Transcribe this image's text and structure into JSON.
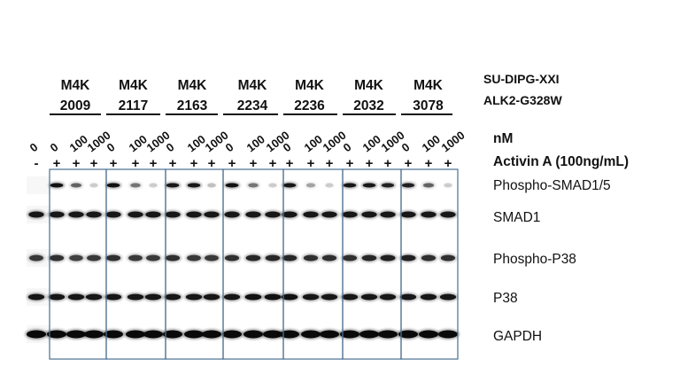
{
  "cell_line": {
    "name": "SU-DIPG-XXI",
    "mutation": "ALK2-G328W"
  },
  "compounds": [
    {
      "line1": "M4K",
      "line2": "2009"
    },
    {
      "line1": "M4K",
      "line2": "2117"
    },
    {
      "line1": "M4K",
      "line2": "2163"
    },
    {
      "line1": "M4K",
      "line2": "2234"
    },
    {
      "line1": "M4K",
      "line2": "2236"
    },
    {
      "line1": "M4K",
      "line2": "2032"
    },
    {
      "line1": "M4K",
      "line2": "3078"
    }
  ],
  "control": {
    "dose": "0",
    "activin": "-"
  },
  "doses": [
    "0",
    "100",
    "1000"
  ],
  "activin_sign": "+",
  "dose_unit": "nM",
  "activin_label": "Activin A (100ng/mL)",
  "blots": [
    {
      "label": "Phospho-SMAD1/5",
      "intensities": [
        0.0,
        0.95,
        0.5,
        0.05,
        0.95,
        0.4,
        0.05,
        0.9,
        0.9,
        0.1,
        0.95,
        0.4,
        0.05,
        0.9,
        0.2,
        0.05,
        0.9,
        0.9,
        0.85,
        0.85,
        0.5,
        0.05
      ]
    },
    {
      "label": "SMAD1",
      "intensities": [
        0.9,
        0.9,
        0.9,
        0.9,
        0.9,
        0.9,
        0.9,
        0.9,
        0.9,
        0.9,
        0.9,
        0.9,
        0.9,
        0.9,
        0.9,
        0.9,
        0.9,
        0.9,
        0.9,
        0.9,
        0.9,
        0.9
      ]
    },
    {
      "label": "Phospho-P38",
      "intensities": [
        0.7,
        0.75,
        0.65,
        0.7,
        0.75,
        0.7,
        0.7,
        0.75,
        0.7,
        0.7,
        0.75,
        0.8,
        0.8,
        0.8,
        0.75,
        0.75,
        0.75,
        0.8,
        0.85,
        0.85,
        0.75,
        0.75
      ]
    },
    {
      "label": "P38",
      "intensities": [
        0.9,
        0.9,
        0.9,
        0.9,
        0.9,
        0.9,
        0.9,
        0.9,
        0.9,
        0.9,
        0.9,
        0.95,
        0.95,
        0.95,
        0.9,
        0.9,
        0.9,
        0.9,
        0.9,
        0.9,
        0.9,
        0.9
      ]
    },
    {
      "label": "GAPDH",
      "intensities": [
        1.0,
        1.0,
        1.0,
        1.0,
        1.0,
        1.0,
        1.0,
        1.0,
        1.0,
        1.0,
        1.0,
        1.0,
        1.0,
        1.0,
        1.0,
        1.0,
        1.0,
        1.0,
        1.0,
        1.0,
        1.0,
        1.0
      ]
    }
  ]
}
